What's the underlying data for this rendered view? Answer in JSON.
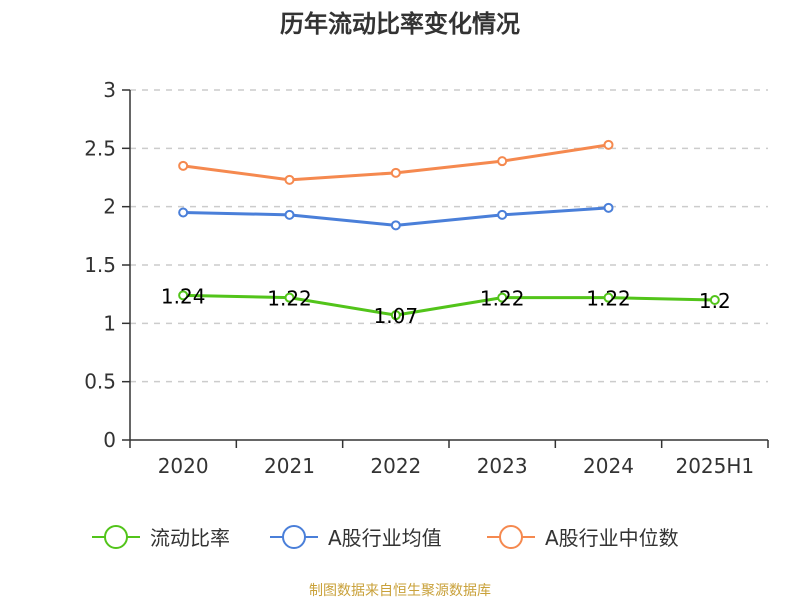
{
  "chart_data": {
    "type": "line",
    "title": "历年流动比率变化情况",
    "categories": [
      "2020",
      "2021",
      "2022",
      "2023",
      "2024",
      "2025H1"
    ],
    "ylim": [
      0,
      3
    ],
    "yticks": [
      "0",
      "0.5",
      "1",
      "1.5",
      "2",
      "2.5",
      "3"
    ],
    "grid": true,
    "legend_position": "bottom",
    "series": [
      {
        "name": "流动比率",
        "color": "#52c41a",
        "values": [
          1.24,
          1.22,
          1.07,
          1.22,
          1.22,
          1.2
        ],
        "labels": [
          "1.24",
          "1.22",
          "1.07",
          "1.22",
          "1.22",
          "1.2"
        ]
      },
      {
        "name": "A股行业均值",
        "color": "#4a7fd9",
        "values": [
          1.95,
          1.93,
          1.84,
          1.93,
          1.99,
          null
        ]
      },
      {
        "name": "A股行业中位数",
        "color": "#f5894f",
        "values": [
          2.35,
          2.23,
          2.29,
          2.39,
          2.53,
          null
        ]
      }
    ]
  },
  "source_text": "制图数据来自恒生聚源数据库"
}
